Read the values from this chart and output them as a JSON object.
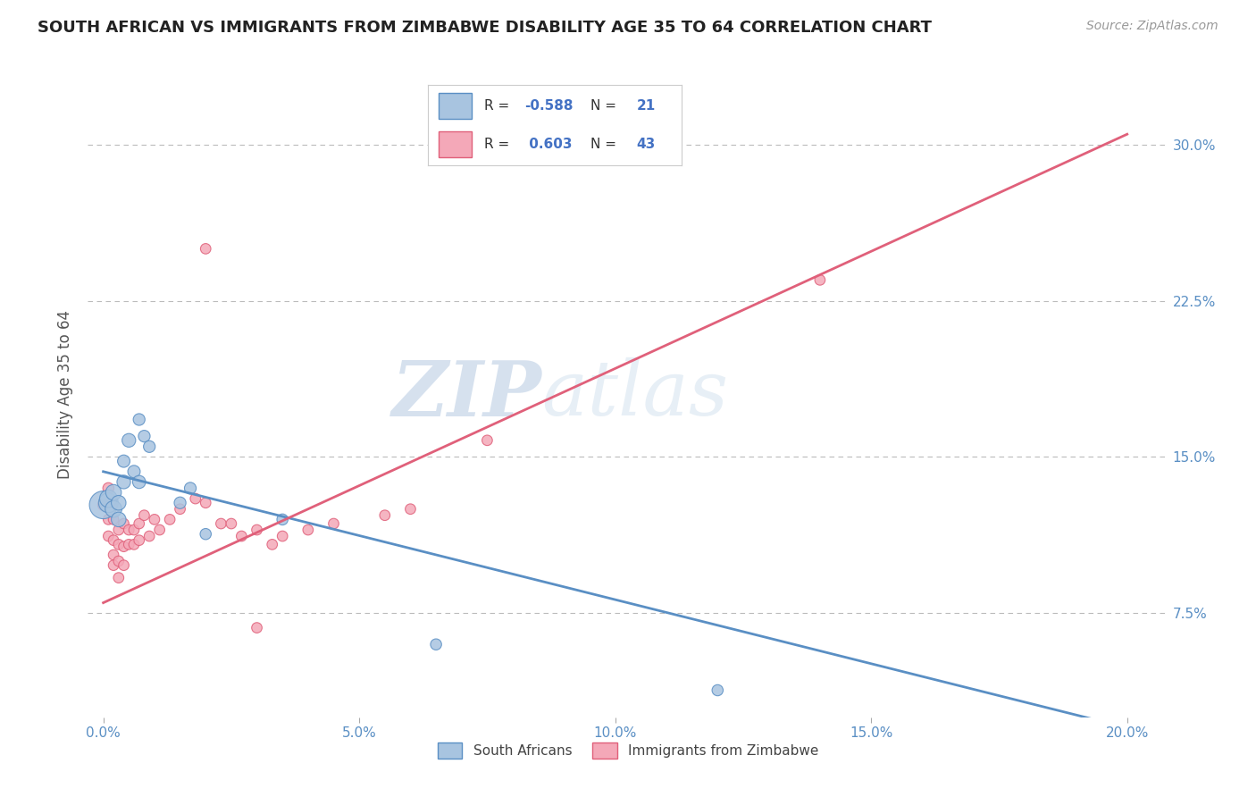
{
  "title": "SOUTH AFRICAN VS IMMIGRANTS FROM ZIMBABWE DISABILITY AGE 35 TO 64 CORRELATION CHART",
  "source": "Source: ZipAtlas.com",
  "ylabel": "Disability Age 35 to 64",
  "legend_label1": "South Africans",
  "legend_label2": "Immigrants from Zimbabwe",
  "r_sa": -0.588,
  "n_sa": 21,
  "r_zim": 0.603,
  "n_zim": 43,
  "ytick_vals": [
    0.075,
    0.15,
    0.225,
    0.3
  ],
  "ytick_labels": [
    "7.5%",
    "15.0%",
    "22.5%",
    "30.0%"
  ],
  "xtick_vals": [
    0.0,
    0.05,
    0.1,
    0.15,
    0.2
  ],
  "xtick_labels": [
    "0.0%",
    "5.0%",
    "10.0%",
    "15.0%",
    "20.0%"
  ],
  "xlim": [
    -0.003,
    0.208
  ],
  "ylim": [
    0.025,
    0.335
  ],
  "color_sa": "#a8c4e0",
  "color_zim": "#f4a8b8",
  "line_color_sa": "#5a8fc4",
  "line_color_zim": "#e0607a",
  "watermark_zip": "ZIP",
  "watermark_atlas": "atlas",
  "sa_points": [
    [
      0.0,
      0.127
    ],
    [
      0.001,
      0.128
    ],
    [
      0.001,
      0.13
    ],
    [
      0.002,
      0.125
    ],
    [
      0.002,
      0.133
    ],
    [
      0.003,
      0.12
    ],
    [
      0.003,
      0.128
    ],
    [
      0.004,
      0.138
    ],
    [
      0.004,
      0.148
    ],
    [
      0.005,
      0.158
    ],
    [
      0.006,
      0.143
    ],
    [
      0.007,
      0.138
    ],
    [
      0.007,
      0.168
    ],
    [
      0.008,
      0.16
    ],
    [
      0.009,
      0.155
    ],
    [
      0.015,
      0.128
    ],
    [
      0.017,
      0.135
    ],
    [
      0.02,
      0.113
    ],
    [
      0.035,
      0.12
    ],
    [
      0.065,
      0.06
    ],
    [
      0.12,
      0.038
    ]
  ],
  "sa_point_sizes": [
    500,
    250,
    200,
    180,
    160,
    140,
    140,
    120,
    100,
    120,
    100,
    110,
    90,
    90,
    90,
    90,
    90,
    80,
    80,
    80,
    80
  ],
  "zim_points": [
    [
      0.0,
      0.127
    ],
    [
      0.001,
      0.135
    ],
    [
      0.001,
      0.12
    ],
    [
      0.001,
      0.112
    ],
    [
      0.002,
      0.12
    ],
    [
      0.002,
      0.11
    ],
    [
      0.002,
      0.103
    ],
    [
      0.002,
      0.098
    ],
    [
      0.003,
      0.115
    ],
    [
      0.003,
      0.108
    ],
    [
      0.003,
      0.1
    ],
    [
      0.003,
      0.092
    ],
    [
      0.004,
      0.118
    ],
    [
      0.004,
      0.107
    ],
    [
      0.004,
      0.098
    ],
    [
      0.005,
      0.115
    ],
    [
      0.005,
      0.108
    ],
    [
      0.006,
      0.115
    ],
    [
      0.006,
      0.108
    ],
    [
      0.007,
      0.118
    ],
    [
      0.007,
      0.11
    ],
    [
      0.008,
      0.122
    ],
    [
      0.009,
      0.112
    ],
    [
      0.01,
      0.12
    ],
    [
      0.011,
      0.115
    ],
    [
      0.013,
      0.12
    ],
    [
      0.015,
      0.125
    ],
    [
      0.018,
      0.13
    ],
    [
      0.02,
      0.128
    ],
    [
      0.023,
      0.118
    ],
    [
      0.025,
      0.118
    ],
    [
      0.027,
      0.112
    ],
    [
      0.03,
      0.115
    ],
    [
      0.033,
      0.108
    ],
    [
      0.035,
      0.112
    ],
    [
      0.04,
      0.115
    ],
    [
      0.045,
      0.118
    ],
    [
      0.055,
      0.122
    ],
    [
      0.06,
      0.125
    ],
    [
      0.075,
      0.158
    ],
    [
      0.02,
      0.25
    ],
    [
      0.14,
      0.235
    ],
    [
      0.03,
      0.068
    ]
  ],
  "zim_point_sizes": [
    80,
    80,
    70,
    70,
    70,
    70,
    70,
    70,
    70,
    70,
    70,
    70,
    70,
    70,
    70,
    70,
    70,
    70,
    70,
    70,
    70,
    70,
    70,
    70,
    70,
    70,
    70,
    70,
    70,
    70,
    70,
    70,
    70,
    70,
    70,
    70,
    70,
    70,
    70,
    70,
    70,
    70,
    70
  ]
}
